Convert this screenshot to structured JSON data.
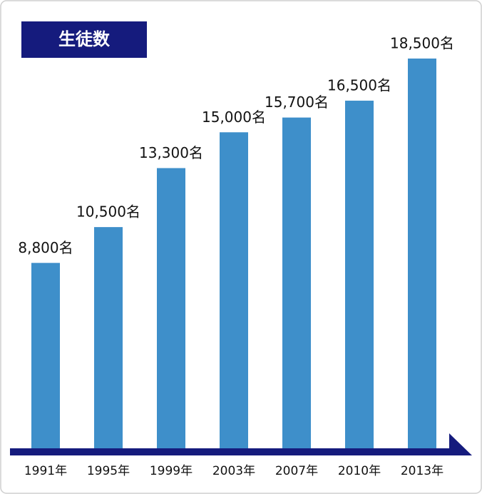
{
  "chart_data": {
    "type": "bar",
    "title": "生徒数",
    "categories": [
      "1991年",
      "1995年",
      "1999年",
      "2003年",
      "2007年",
      "2010年",
      "2013年"
    ],
    "values": [
      8800,
      10500,
      13300,
      15000,
      15700,
      16500,
      18500
    ],
    "value_labels": [
      "8,800名",
      "10,500名",
      "13,300名",
      "15,000名",
      "15,700名",
      "16,500名",
      "18,500名"
    ],
    "color": "#3e8fca"
  }
}
